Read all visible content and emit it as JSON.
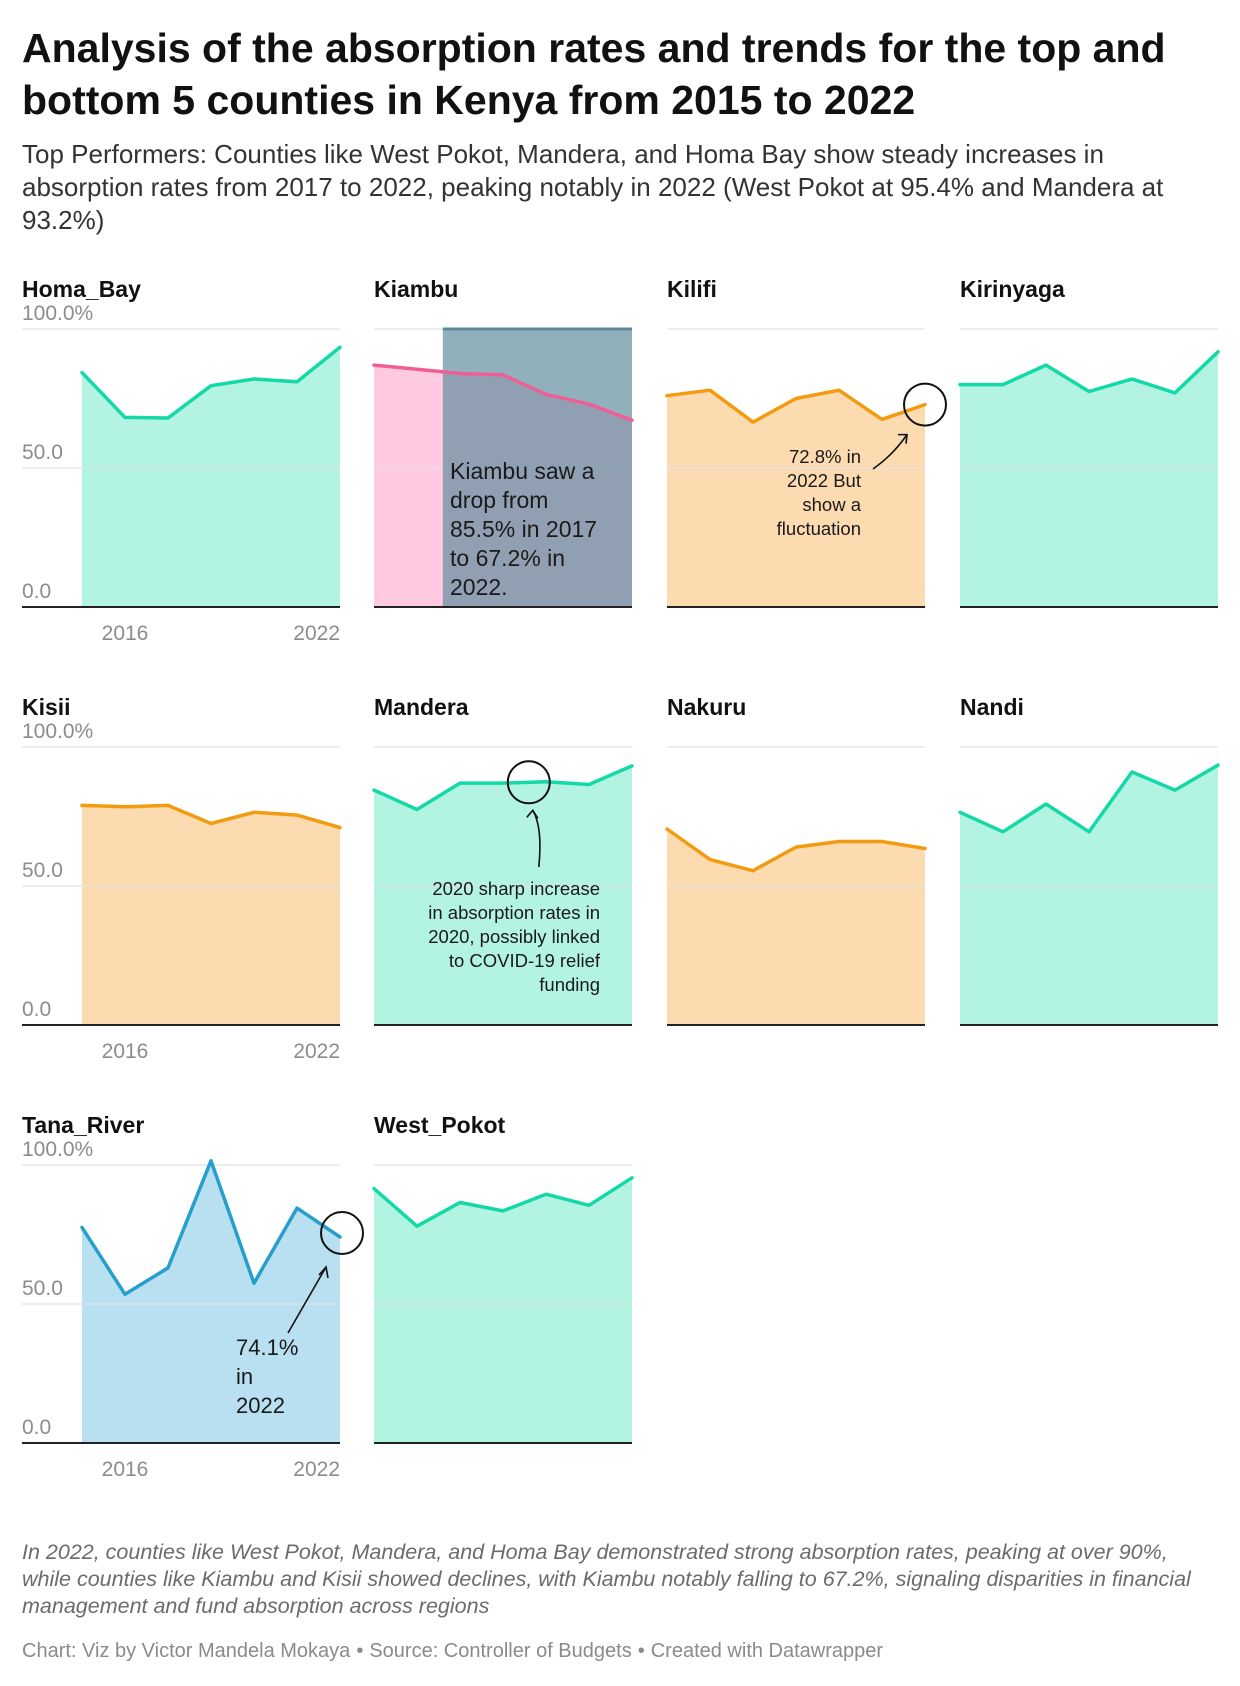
{
  "title": "Analysis of the absorption rates and trends for the top and bottom 5 counties in Kenya from 2015 to 2022",
  "subtitle": "Top Performers: Counties like West Pokot, Mandera, and Homa Bay show steady increases in absorption rates from 2017 to 2022, peaking notably in 2022 (West Pokot at 95.4% and Mandera at 93.2%)",
  "notes": "In 2022, counties like West Pokot, Mandera, and Homa Bay demonstrated strong absorption rates, peaking at over 90%, while counties like Kiambu and Kisii showed declines, with Kiambu notably falling to 67.2%, signaling disparities in financial management and fund absorption across regions",
  "credit": {
    "chart": "Chart: Viz by Victor Mandela Mokaya",
    "source": "Source: Controller of Budgets",
    "tool": "Created with Datawrapper",
    "separator": "•"
  },
  "colors": {
    "green_line": "#12d9a6",
    "green_fill": "#b3f3e2",
    "orange_line": "#f29b10",
    "orange_fill": "#fcdbb1",
    "blue_line": "#279fcd",
    "blue_fill": "#b8e0f0",
    "pink_line": "#ef5f96",
    "pink_fill": "#ffc9df",
    "highlight_band": "#5b8b9b",
    "grid": "#e2e2e2",
    "axis_text": "#8c8c8c",
    "baseline": "#222222"
  },
  "chart_data": {
    "type": "area",
    "layout": "small-multiples",
    "x": [
      2015,
      2016,
      2017,
      2018,
      2019,
      2020,
      2021
    ],
    "x_tick_labels": [
      "2016",
      "2022"
    ],
    "y_tick_labels": [
      "100.0%",
      "50.0",
      "0.0"
    ],
    "y_ticks": [
      100,
      50,
      0
    ],
    "ylim": [
      0,
      100
    ],
    "grid": true,
    "panels": [
      {
        "name": "Homa_Bay",
        "color": "green",
        "values": [
          84.3,
          68.2,
          68.0,
          79.6,
          82.0,
          81.0,
          93.4
        ]
      },
      {
        "name": "Kiambu",
        "color": "pink",
        "values": [
          87.0,
          85.5,
          84.0,
          83.5,
          76.5,
          73.0,
          67.2
        ],
        "highlight_range": [
          2016.6,
          2021
        ],
        "annotation": {
          "text": "Kiambu saw a drop from 85.5% in 2017 to 67.2% in 2022.",
          "lines": [
            "Kiambu saw a",
            "drop from",
            "85.5% in 2017",
            "to 67.2% in",
            "2022."
          ]
        }
      },
      {
        "name": "Kilifi",
        "color": "orange",
        "values": [
          76.0,
          78.0,
          66.5,
          75.0,
          78.0,
          67.5,
          72.8
        ],
        "annotation": {
          "text": "72.8% in 2022 But show a fluctuation",
          "lines": [
            "72.8% in",
            "2022 But",
            "show a",
            "fluctuation"
          ],
          "circle_year": 2021
        }
      },
      {
        "name": "Kirinyaga",
        "color": "green",
        "values": [
          80.0,
          80.0,
          87.0,
          77.5,
          82.0,
          77.0,
          91.8
        ]
      },
      {
        "name": "Kisii",
        "color": "orange",
        "values": [
          79.0,
          78.5,
          79.0,
          72.5,
          76.5,
          75.5,
          71.0
        ]
      },
      {
        "name": "Mandera",
        "color": "green",
        "values": [
          84.5,
          77.5,
          87.0,
          87.0,
          87.5,
          86.5,
          93.2
        ],
        "annotation": {
          "text": "2020 sharp increase in absorption rates in 2020, possibly linked to COVID-19 relief funding",
          "lines": [
            "2020 sharp increase",
            "in absorption rates in",
            "2020, possibly linked",
            "to COVID-19 relief",
            "funding"
          ],
          "circle_year": 2018.6
        }
      },
      {
        "name": "Nakuru",
        "color": "orange",
        "values": [
          70.5,
          59.5,
          55.5,
          64.0,
          66.0,
          66.0,
          63.5
        ]
      },
      {
        "name": "Nandi",
        "color": "green",
        "values": [
          76.5,
          69.5,
          79.5,
          69.5,
          91.0,
          84.5,
          93.5
        ]
      },
      {
        "name": "Tana_River",
        "color": "blue",
        "values": [
          77.5,
          53.5,
          63.0,
          101.5,
          57.5,
          84.5,
          74.1
        ],
        "annotation": {
          "text": "74.1% in 2022",
          "lines": [
            "74.1%",
            "in",
            "2022"
          ],
          "circle_year": 2021
        }
      },
      {
        "name": "West_Pokot",
        "color": "green",
        "values": [
          91.5,
          78.0,
          86.5,
          83.5,
          89.5,
          85.5,
          95.4
        ]
      }
    ]
  }
}
